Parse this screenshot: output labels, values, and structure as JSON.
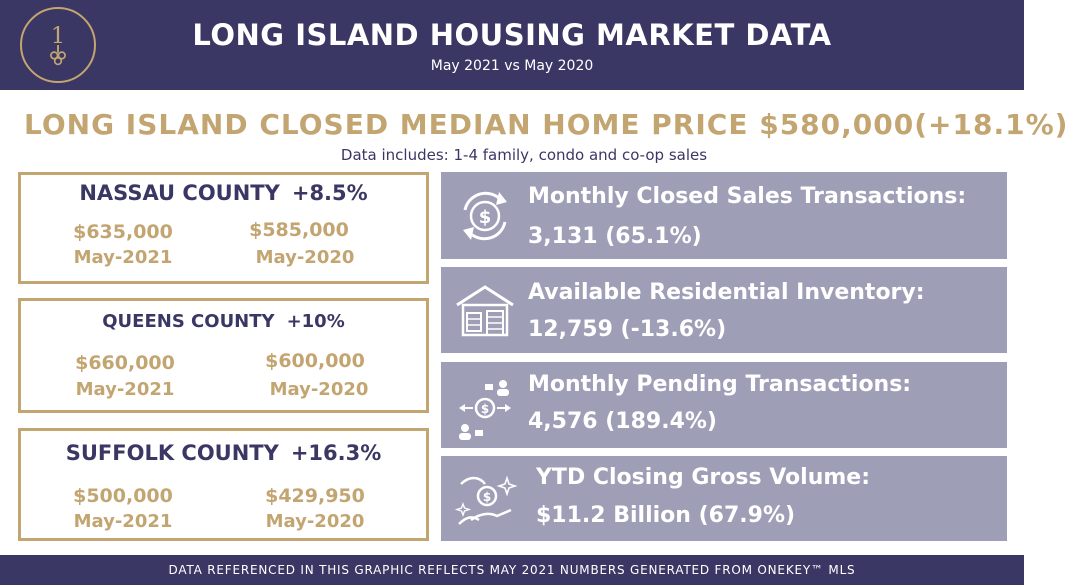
{
  "header": {
    "logo_icon": "circle-1-monogram-logo",
    "title": "LONG ISLAND HOUSING MARKET DATA",
    "subtitle": "May 2021 vs May 2020"
  },
  "headline": {
    "text": "LONG ISLAND CLOSED MEDIAN HOME PRICE $580,000(+18.1%)",
    "includes": "Data includes: 1-4 family, condo and co-op sales"
  },
  "counties": [
    {
      "name": "NASSAU COUNTY",
      "change": "+8.5%",
      "price_2021": "$635,000",
      "period_2021": "May-2021",
      "price_2020": "$585,000",
      "period_2020": "May-2020"
    },
    {
      "name": "QUEENS COUNTY",
      "change": "+10%",
      "price_2021": "$660,000",
      "period_2021": "May-2021",
      "price_2020": "$600,000",
      "period_2020": "May-2020"
    },
    {
      "name": "SUFFOLK COUNTY",
      "change": "+16.3%",
      "price_2021": "$500,000",
      "period_2021": "May-2021",
      "price_2020": "$429,950",
      "period_2020": "May-2020"
    }
  ],
  "stats": [
    {
      "icon": "dollar-cycle-icon",
      "label": "Monthly Closed Sales Transactions:",
      "value": "3,131 (65.1%)"
    },
    {
      "icon": "house-inventory-icon",
      "label": "Available Residential Inventory:",
      "value": "12,759 (-13.6%)"
    },
    {
      "icon": "pending-exchange-icon",
      "label": "Monthly Pending Transactions:",
      "value": "4,576 (189.4%)"
    },
    {
      "icon": "hand-dollar-icon",
      "label": "YTD Closing Gross Volume:",
      "value": "$11.2 Billion (67.9%)"
    }
  ],
  "colors": {
    "navy": "#3b3764",
    "gold": "#c2a571",
    "panel": "#9e9eb7"
  },
  "footer": {
    "text": "DATA REFERENCED IN THIS GRAPHIC REFLECTS MAY 2021 NUMBERS GENERATED FROM ONEKEY™ MLS"
  }
}
